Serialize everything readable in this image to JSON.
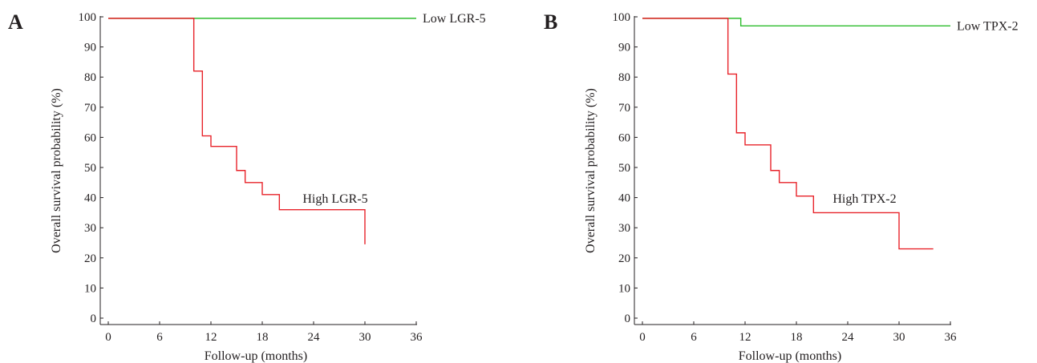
{
  "chart_data": [
    {
      "panel_label": "A",
      "type": "line",
      "step": true,
      "xlabel": "Follow-up (months)",
      "ylabel": "Overall survival probability (%)",
      "xlim": [
        0,
        36
      ],
      "ylim": [
        0,
        100
      ],
      "xticks": [
        0,
        6,
        12,
        18,
        24,
        30,
        36
      ],
      "yticks": [
        0,
        10,
        20,
        30,
        40,
        50,
        60,
        70,
        80,
        90,
        100
      ],
      "grid": false,
      "series": [
        {
          "name": "Low LGR-5",
          "color": "#2dbd2d",
          "x": [
            0,
            36
          ],
          "y": [
            99.5,
            99.5
          ]
        },
        {
          "name": "High LGR-5",
          "color": "#e8232a",
          "x": [
            0,
            10,
            11,
            12,
            15,
            16,
            18,
            20,
            30,
            30
          ],
          "y": [
            99.5,
            82,
            60.5,
            57,
            49,
            45,
            41,
            36,
            36,
            24.5
          ]
        }
      ]
    },
    {
      "panel_label": "B",
      "type": "line",
      "step": true,
      "xlabel": "Follow-up (months)",
      "ylabel": "Overall survival probability (%)",
      "xlim": [
        0,
        36
      ],
      "ylim": [
        0,
        100
      ],
      "xticks": [
        0,
        6,
        12,
        18,
        24,
        30,
        36
      ],
      "yticks": [
        0,
        10,
        20,
        30,
        40,
        50,
        60,
        70,
        80,
        90,
        100
      ],
      "grid": false,
      "series": [
        {
          "name": "Low TPX-2",
          "color": "#2dbd2d",
          "x": [
            0,
            11.5,
            36
          ],
          "y": [
            99.5,
            97,
            97
          ]
        },
        {
          "name": "High TPX-2",
          "color": "#e8232a",
          "x": [
            0,
            10,
            11,
            12,
            15,
            16,
            18,
            20,
            30,
            34
          ],
          "y": [
            99.5,
            81,
            61.5,
            57.5,
            49,
            45,
            40.5,
            35,
            23,
            23
          ]
        }
      ]
    }
  ]
}
